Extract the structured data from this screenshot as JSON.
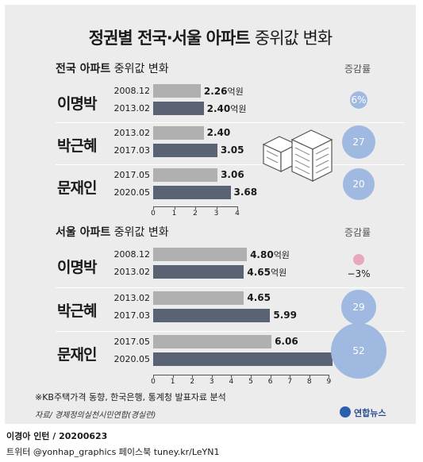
{
  "title": {
    "bold": "정권별 전국·서울 아파트",
    "light": "중위값 변화"
  },
  "colors": {
    "bar_light": "#b0b0b0",
    "bar_dark": "#5a6373",
    "bubble": "#9fb9e1",
    "bubble_negative": "#e8a8bc"
  },
  "sections": [
    {
      "title_bold": "전국 아파트",
      "title_light": "중위값 변화",
      "change_header": "증감률",
      "axis_ticks": [
        "0",
        "1",
        "2",
        "3",
        "4"
      ],
      "groups": [
        {
          "leader": "이명박",
          "change": "6%",
          "rows": [
            {
              "date": "2008.12",
              "label": "2.26",
              "unit": "억원"
            },
            {
              "date": "2013.02",
              "label": "2.40",
              "unit": "억원"
            }
          ]
        },
        {
          "leader": "박근혜",
          "change": "27",
          "rows": [
            {
              "date": "2013.02",
              "label": "2.40",
              "unit": ""
            },
            {
              "date": "2017.03",
              "label": "3.05",
              "unit": ""
            }
          ]
        },
        {
          "leader": "문재인",
          "change": "20",
          "rows": [
            {
              "date": "2017.05",
              "label": "3.06",
              "unit": ""
            },
            {
              "date": "2020.05",
              "label": "3.68",
              "unit": ""
            }
          ]
        }
      ]
    },
    {
      "title_bold": "서울 아파트",
      "title_light": "중위값 변화",
      "change_header": "증감률",
      "axis_ticks": [
        "0",
        "1",
        "2",
        "3",
        "4",
        "5",
        "6",
        "7",
        "8",
        "9"
      ],
      "groups": [
        {
          "leader": "이명박",
          "change": "−3%",
          "rows": [
            {
              "date": "2008.12",
              "label": "4.80",
              "unit": "억원"
            },
            {
              "date": "2013.02",
              "label": "4.65",
              "unit": "억원"
            }
          ]
        },
        {
          "leader": "박근혜",
          "change": "29",
          "rows": [
            {
              "date": "2013.02",
              "label": "4.65",
              "unit": ""
            },
            {
              "date": "2017.03",
              "label": "5.99",
              "unit": ""
            }
          ]
        },
        {
          "leader": "문재인",
          "change": "52",
          "rows": [
            {
              "date": "2017.05",
              "label": "6.06",
              "unit": ""
            },
            {
              "date": "2020.05",
              "label": "9.2",
              "unit": ""
            }
          ]
        }
      ]
    }
  ],
  "chart_data": [
    {
      "type": "bar",
      "title": "전국 아파트 중위값 변화",
      "xlim": [
        0,
        4
      ],
      "categories": [
        "2008.12",
        "2013.02",
        "2013.02",
        "2017.03",
        "2017.05",
        "2020.05"
      ],
      "groups": [
        "이명박",
        "이명박",
        "박근혜",
        "박근혜",
        "문재인",
        "문재인"
      ],
      "values": [
        2.26,
        2.4,
        2.4,
        3.05,
        3.06,
        3.68
      ],
      "change_percent": {
        "이명박": 6,
        "박근혜": 27,
        "문재인": 20
      },
      "unit": "억원"
    },
    {
      "type": "bar",
      "title": "서울 아파트 중위값 변화",
      "xlim": [
        0,
        9
      ],
      "categories": [
        "2008.12",
        "2013.02",
        "2013.02",
        "2017.03",
        "2017.05",
        "2020.05"
      ],
      "groups": [
        "이명박",
        "이명박",
        "박근혜",
        "박근혜",
        "문재인",
        "문재인"
      ],
      "values": [
        4.8,
        4.65,
        4.65,
        5.99,
        6.06,
        9.2
      ],
      "change_percent": {
        "이명박": -3,
        "박근혜": 29,
        "문재인": 52
      },
      "unit": "억원"
    }
  ],
  "footnote": "※KB주택가격 동향, 한국은행, 통계청 발표자료 분석",
  "source": "자료/ 경제정의실천시민연합(경실련)",
  "logo": "연합뉴스",
  "credit": "이경아 인턴 / 20200623",
  "social": "트위터 @yonhap_graphics  페이스북 tuney.kr/LeYN1"
}
